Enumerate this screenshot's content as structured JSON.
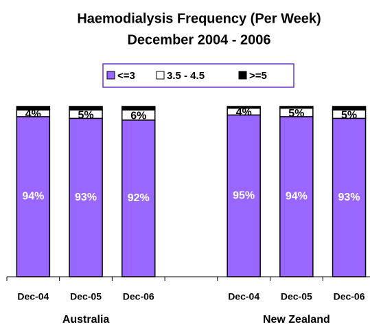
{
  "chart_data": {
    "type": "stacked_bar",
    "title": "Haemodialysis Frequency (Per Week)",
    "subtitle": "December 2004 - 2006",
    "categories": [
      "Dec-04",
      "Dec-05",
      "Dec-06",
      null,
      "Dec-04",
      "Dec-05",
      "Dec-06"
    ],
    "groups": [
      "Australia",
      "New Zealand"
    ],
    "series": [
      {
        "name": "<=3",
        "color": "#9966ff",
        "label_color": "#ffffff",
        "values": [
          94,
          93,
          92,
          null,
          95,
          94,
          93
        ],
        "value_labels": [
          "94%",
          "93%",
          "92%",
          null,
          "95%",
          "94%",
          "93%"
        ]
      },
      {
        "name": "3.5 - 4.5",
        "color": "#ffffff",
        "label_color": "#000000",
        "values": [
          4,
          5,
          6,
          null,
          4,
          5,
          5
        ],
        "value_labels": [
          "4%",
          "5%",
          "6%",
          null,
          "4%",
          "5%",
          "5%"
        ]
      },
      {
        "name": ">=5",
        "color": "#000000",
        "values": [
          2,
          2,
          2,
          null,
          1,
          1,
          2
        ]
      }
    ],
    "ylim": [
      0,
      100
    ]
  }
}
